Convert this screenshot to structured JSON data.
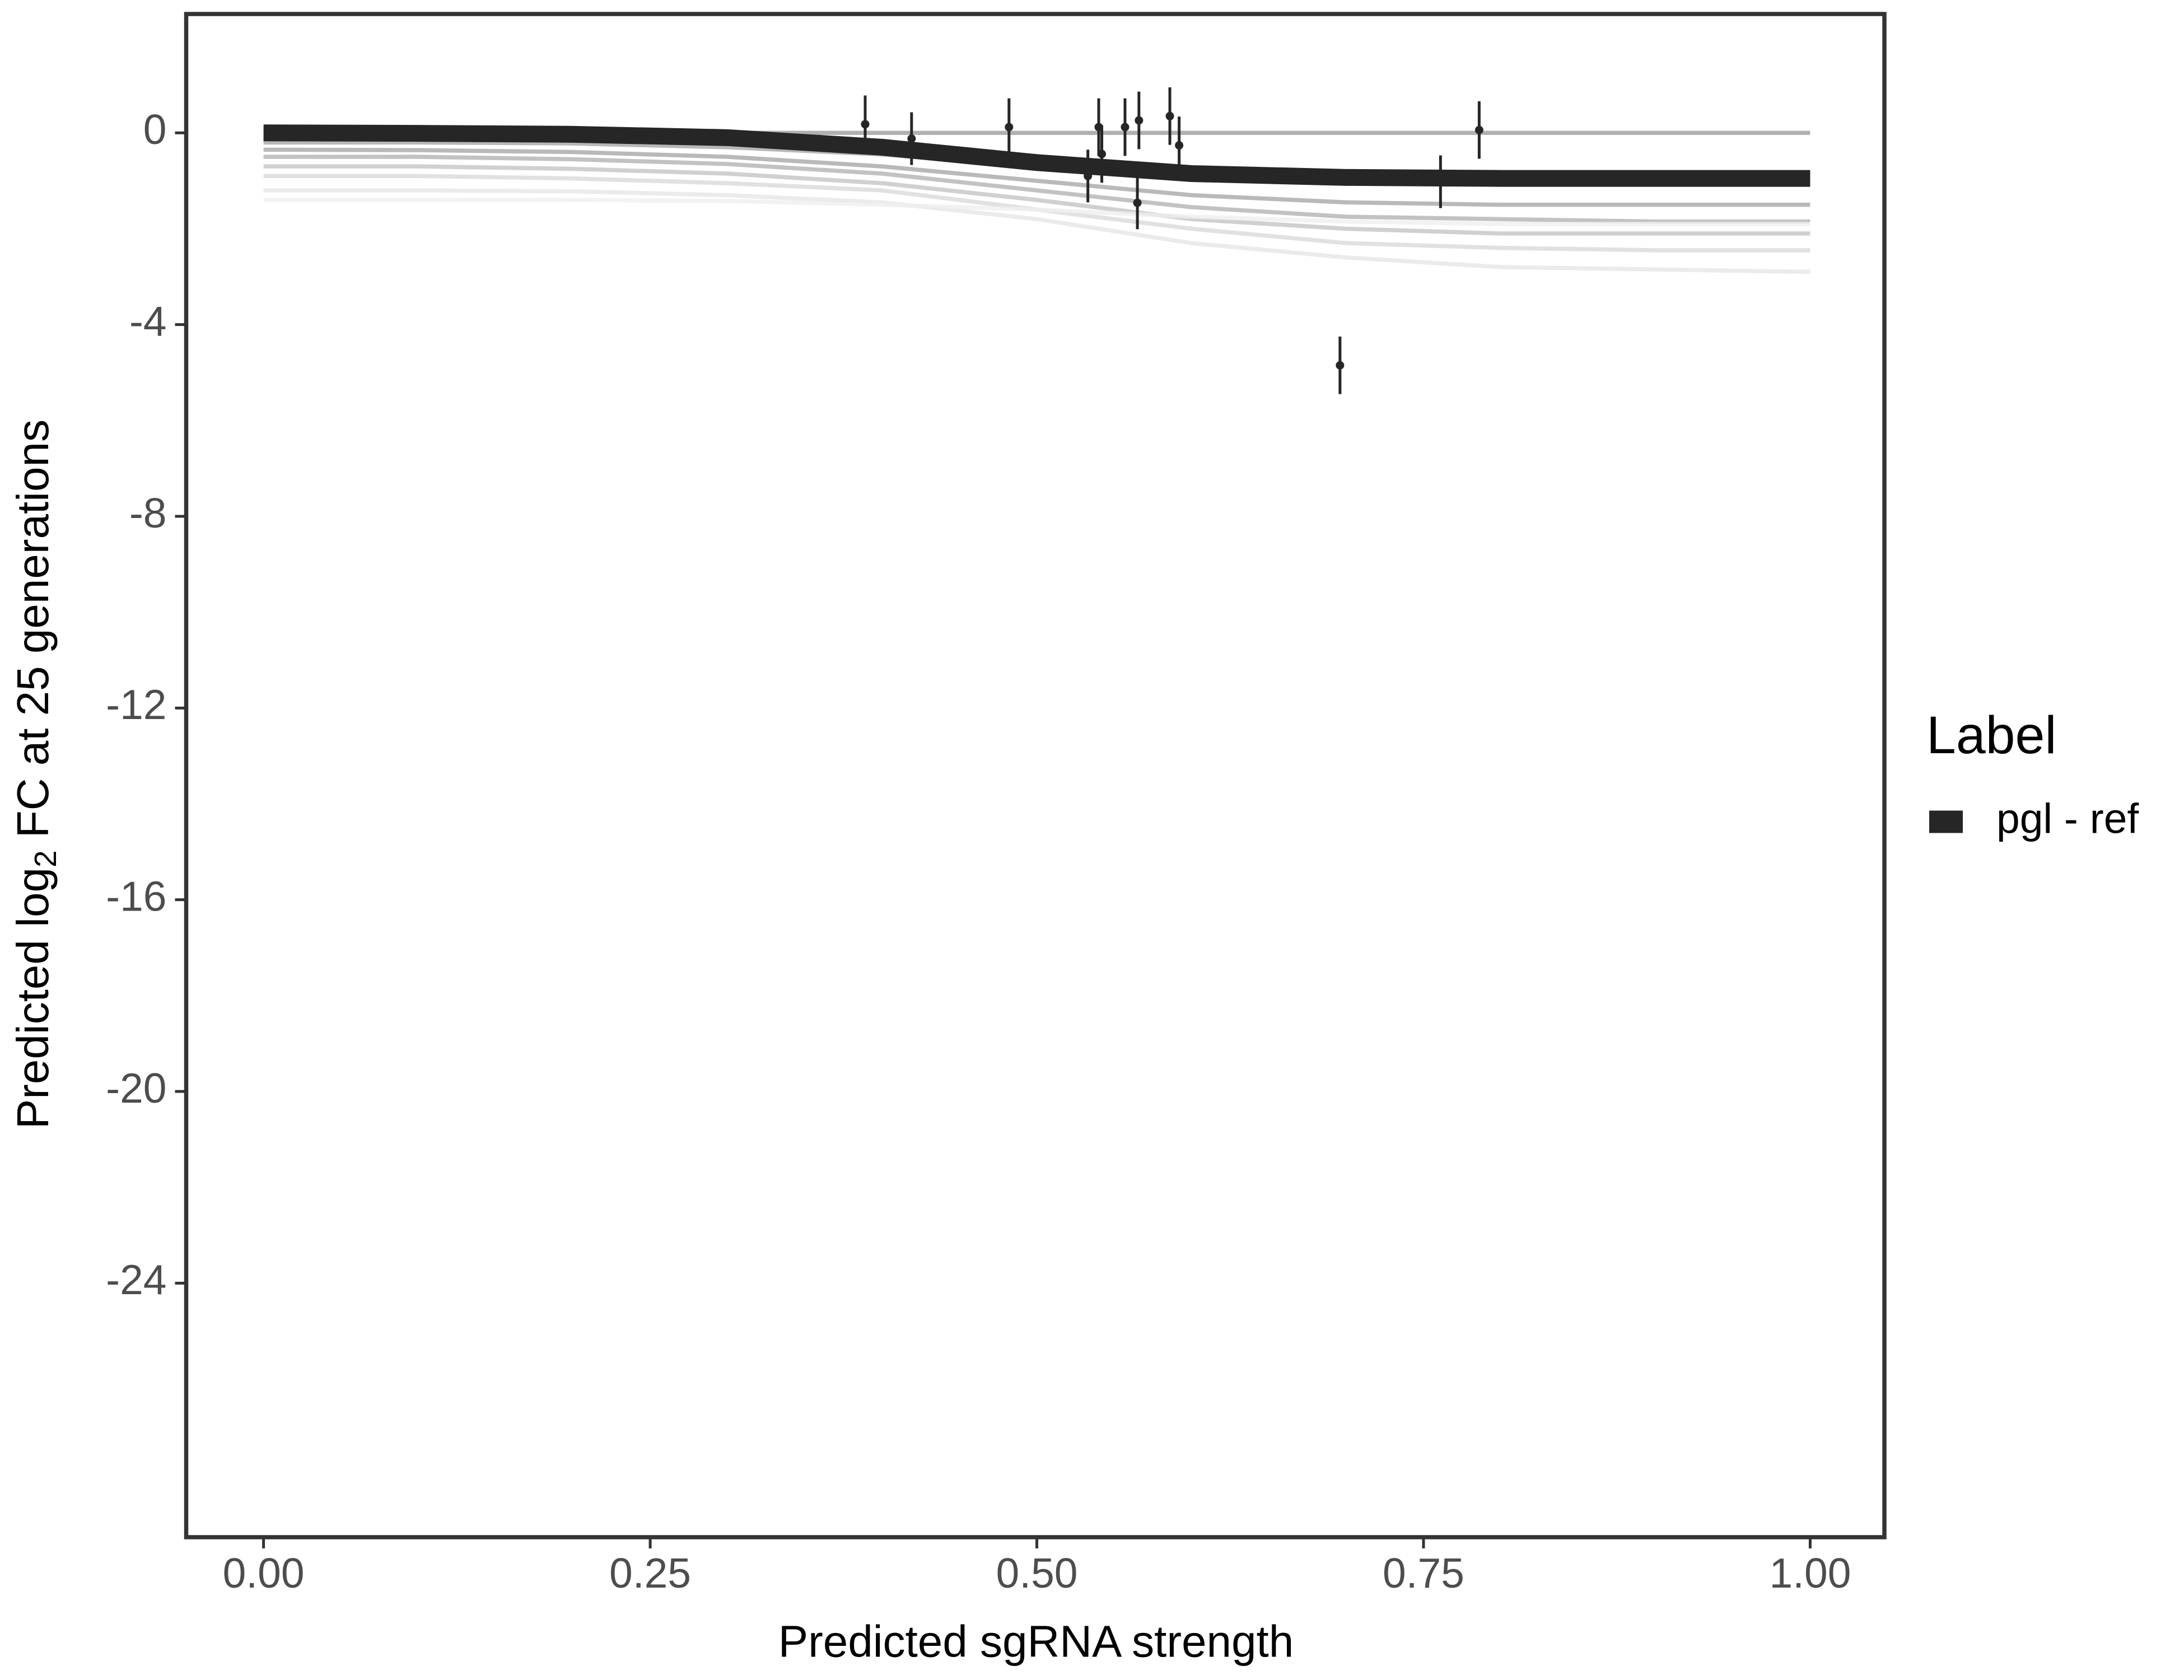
{
  "chart_data": {
    "type": "line",
    "xlabel": "Predicted sgRNA strength",
    "ylabel": [
      "Predicted  log",
      "2",
      " FC at 25 generations"
    ],
    "legend_title": "Label",
    "legend_position": "right",
    "xlim": [
      -0.05,
      1.048
    ],
    "ylim": [
      -29.3,
      2.48
    ],
    "xticks": [
      {
        "value": 0,
        "label": "0.00"
      },
      {
        "value": 0.25,
        "label": "0.25"
      },
      {
        "value": 0.5,
        "label": "0.50"
      },
      {
        "value": 0.75,
        "label": "0.75"
      },
      {
        "value": 1,
        "label": "1.00"
      }
    ],
    "yticks": [
      0,
      -4,
      -8,
      -12,
      -16,
      -20,
      -24
    ],
    "x": [
      0,
      0.1,
      0.2,
      0.3,
      0.4,
      0.5,
      0.6,
      0.7,
      0.8,
      0.9,
      1.0
    ],
    "series": [
      {
        "name": "pgl - ref",
        "color": "#262626",
        "values": [
          0,
          -0.01,
          -0.03,
          -0.1,
          -0.3,
          -0.62,
          -0.85,
          -0.93,
          -0.95,
          -0.95,
          -0.95
        ]
      }
    ],
    "draws": [
      {
        "color": "#9e9e9e",
        "values": [
          0,
          0,
          0,
          0,
          0,
          0,
          0,
          0,
          0,
          0,
          0
        ]
      },
      {
        "color": "#a6a6a6",
        "values": [
          -0.2,
          -0.2,
          -0.22,
          -0.3,
          -0.45,
          -0.7,
          -0.9,
          -1.0,
          -1.05,
          -1.05,
          -1.05
        ]
      },
      {
        "color": "#a8a8a8",
        "values": [
          -0.35,
          -0.36,
          -0.4,
          -0.5,
          -0.7,
          -1.0,
          -1.3,
          -1.45,
          -1.5,
          -1.5,
          -1.5
        ]
      },
      {
        "color": "#b3b3b3",
        "values": [
          -0.5,
          -0.5,
          -0.55,
          -0.65,
          -0.85,
          -1.2,
          -1.55,
          -1.75,
          -1.8,
          -1.85,
          -1.85
        ]
      },
      {
        "color": "#c4c4c4",
        "values": [
          -0.7,
          -0.7,
          -0.75,
          -0.85,
          -1.05,
          -1.4,
          -1.8,
          -2.0,
          -2.1,
          -2.1,
          -2.1
        ]
      },
      {
        "color": "#d9d9d9",
        "values": [
          -0.9,
          -0.9,
          -0.95,
          -1.05,
          -1.2,
          -1.6,
          -2.0,
          -2.3,
          -2.4,
          -2.45,
          -2.45
        ]
      },
      {
        "color": "#e6e6e6",
        "values": [
          -1.2,
          -1.2,
          -1.22,
          -1.3,
          -1.45,
          -1.8,
          -2.3,
          -2.6,
          -2.8,
          -2.85,
          -2.9
        ]
      },
      {
        "color": "#efefef",
        "values": [
          -1.4,
          -1.4,
          -1.4,
          -1.42,
          -1.5,
          -1.6,
          -1.75,
          -1.85,
          -1.9,
          -1.9,
          -1.9
        ]
      }
    ],
    "points": {
      "color": "#262626",
      "x": [
        0.389,
        0.419,
        0.482,
        0.54,
        0.533,
        0.542,
        0.557,
        0.566,
        0.565,
        0.586,
        0.592,
        0.696,
        0.761,
        0.786
      ],
      "y": [
        0.18,
        -0.12,
        0.12,
        0.12,
        -0.9,
        -0.44,
        0.12,
        0.26,
        -1.46,
        0.35,
        -0.26,
        -4.85,
        -1.02,
        0.06
      ],
      "error": [
        0.6,
        0.55,
        0.6,
        0.6,
        0.55,
        0.6,
        0.6,
        0.6,
        0.55,
        0.6,
        0.6,
        0.6,
        0.55,
        0.6
      ]
    }
  }
}
